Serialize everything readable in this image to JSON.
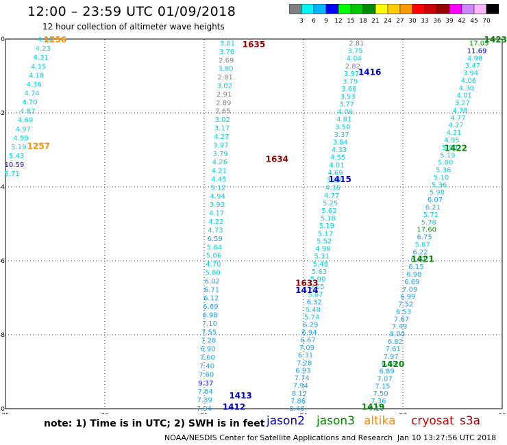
{
  "title": "12:00 – 23:59 UTC 01/09/2018",
  "subtitle": "12 hour collection of altimeter wave heights",
  "note": "note: 1) Time is in UTC; 2) SWH is in feet",
  "credit": "NOAA/NESDIS Center for Satellite Applications and Research",
  "timestamp": "Jan 10 13:27:56 UTC 2018",
  "legend": [
    {
      "name": "jason2",
      "color": "#0000cc"
    },
    {
      "name": "jason3",
      "color": "#008800"
    },
    {
      "name": "altika",
      "color": "#ff8c00"
    },
    {
      "name": "cryosat",
      "color": "#cc0000"
    },
    {
      "name": "s3a",
      "color": "#990000"
    }
  ],
  "colorbar": {
    "labels": [
      "3",
      "6",
      "9",
      "12",
      "15",
      "18",
      "21",
      "24",
      "27",
      "30",
      "33",
      "36",
      "39",
      "42",
      "45",
      "70"
    ],
    "colors": [
      "#808080",
      "#00f5f5",
      "#00b4ff",
      "#0000ff",
      "#00ff00",
      "#00c800",
      "#008c00",
      "#ffff00",
      "#ffcc00",
      "#ff9900",
      "#ff0000",
      "#cc0000",
      "#990000",
      "#ff00ff",
      "#cc88ff",
      "#ffb4ff",
      "#000000"
    ]
  },
  "chart_data": {
    "type": "scatter",
    "xlim": [
      75,
      90
    ],
    "ylim": [
      -10,
      0
    ],
    "x_ticks": [
      75,
      78,
      81,
      84,
      87,
      90
    ],
    "y_ticks": [
      0,
      -2,
      -4,
      -6,
      -8,
      -10
    ],
    "grid": "dotted",
    "value_colors": [
      {
        "max": 3,
        "color": "#808080"
      },
      {
        "max": 6,
        "color": "#00d0e0"
      },
      {
        "max": 9,
        "color": "#1aa0ff"
      },
      {
        "max": 12,
        "color": "#0000ee"
      },
      {
        "max": 15,
        "color": "#00cc00"
      },
      {
        "max": 18,
        "color": "#00a000"
      },
      {
        "max": 21,
        "color": "#008000"
      }
    ],
    "tracks": [
      {
        "start": [
          76.2,
          -0.02
        ],
        "end": [
          75.2,
          -3.65
        ],
        "values": [
          "4.20",
          "4.23",
          "4.31",
          "4.15",
          "4.18",
          "4.36",
          "4.74",
          "4.70",
          "4.87",
          "4.69",
          "4.97",
          "4.99",
          "5.19",
          "5.43",
          "10.59",
          "5.71"
        ]
      },
      {
        "start": [
          81.7,
          -0.12
        ],
        "end": [
          81.0,
          -10.0
        ],
        "values": [
          "3.01",
          "3.76",
          "2.69",
          "3.80",
          "2.81",
          "3.02",
          "2.91",
          "2.89",
          "2.65",
          "3.02",
          "3.17",
          "4.27",
          "3.97",
          "3.79",
          "4.26",
          "4.21",
          "4.45",
          "5.12",
          "4.94",
          "3.93",
          "4.17",
          "4.22",
          "4.73",
          "6.59",
          "5.64",
          "5.06",
          "4.70",
          "5.80",
          "6.02",
          "6.71",
          "6.12",
          "6.69",
          "6.98",
          "7.10",
          "7.55",
          "7.28",
          "6.90",
          "7.60",
          "7.40",
          "7.60",
          "9.37",
          "7.64",
          "7.39",
          "7.94"
        ]
      },
      {
        "start": [
          85.6,
          -0.12
        ],
        "end": [
          83.8,
          -10.0
        ],
        "values": [
          "2.81",
          "3.75",
          "4.04",
          "2.82",
          "3.97",
          "3.79",
          "3.66",
          "3.53",
          "3.77",
          "4.06",
          "4.81",
          "3.50",
          "3.37",
          "3.84",
          "4.33",
          "4.55",
          "4.01",
          "4.69",
          "3.87",
          "4.36",
          "4.77",
          "5.25",
          "5.62",
          "5.18",
          "5.19",
          "5.17",
          "5.52",
          "4.98",
          "5.31",
          "5.48",
          "5.63",
          "5.90",
          "5.65",
          "5.87",
          "6.32",
          "5.48",
          "5.74",
          "6.29",
          "6.94",
          "6.67",
          "7.09",
          "6.31",
          "7.28",
          "6.93",
          "7.74",
          "7.94",
          "8.17",
          "7.86",
          "8.46"
        ]
      },
      {
        "start": [
          89.3,
          -0.12
        ],
        "end": [
          86.2,
          -10.0
        ],
        "values": [
          "17.05",
          "11.69",
          "4.98",
          "3.47",
          "3.94",
          "4.06",
          "4.30",
          "4.01",
          "3.27",
          "4.38",
          "4.77",
          "4.27",
          "4.21",
          "4.95",
          "5.00",
          "5.19",
          "5.00",
          "5.36",
          "5.10",
          "5.36",
          "5.98",
          "6.07",
          "6.21",
          "5.71",
          "5.78",
          "17.60",
          "6.75",
          "5.87",
          "6.22",
          "6.37",
          "6.15",
          "6.98",
          "6.69",
          "7.09",
          "6.99",
          "7.52",
          "6.53",
          "7.67",
          "7.49",
          "8.00",
          "6.82",
          "7.61",
          "7.97",
          "6.89",
          "6.89",
          "7.07",
          "7.15",
          "7.50",
          "7.36",
          "7.10"
        ]
      }
    ],
    "pass_labels": [
      {
        "text": "1256",
        "lon": 76.5,
        "lat": -0.02,
        "sat": "altika"
      },
      {
        "text": "1257",
        "lon": 76.0,
        "lat": -2.9,
        "sat": "altika"
      },
      {
        "text": "1635",
        "lon": 82.5,
        "lat": -0.15,
        "sat": "s3a"
      },
      {
        "text": "1634",
        "lon": 83.2,
        "lat": -3.25,
        "sat": "s3a"
      },
      {
        "text": "1633",
        "lon": 84.1,
        "lat": -6.6,
        "sat": "s3a"
      },
      {
        "text": "1416",
        "lon": 86.0,
        "lat": -0.9,
        "sat": "jason2"
      },
      {
        "text": "1415",
        "lon": 85.1,
        "lat": -3.8,
        "sat": "jason2"
      },
      {
        "text": "1414",
        "lon": 84.1,
        "lat": -6.8,
        "sat": "jason2"
      },
      {
        "text": "1413",
        "lon": 82.1,
        "lat": -9.65,
        "sat": "jason2"
      },
      {
        "text": "1412",
        "lon": 81.9,
        "lat": -9.95,
        "sat": "jason2"
      },
      {
        "text": "1423",
        "lon": 89.8,
        "lat": -0.02,
        "sat": "jason3"
      },
      {
        "text": "1422",
        "lon": 88.6,
        "lat": -2.95,
        "sat": "jason3"
      },
      {
        "text": "1421",
        "lon": 87.6,
        "lat": -5.95,
        "sat": "jason3"
      },
      {
        "text": "1420",
        "lon": 86.7,
        "lat": -8.8,
        "sat": "jason3"
      },
      {
        "text": "1419",
        "lon": 86.1,
        "lat": -9.95,
        "sat": "jason3"
      }
    ]
  }
}
